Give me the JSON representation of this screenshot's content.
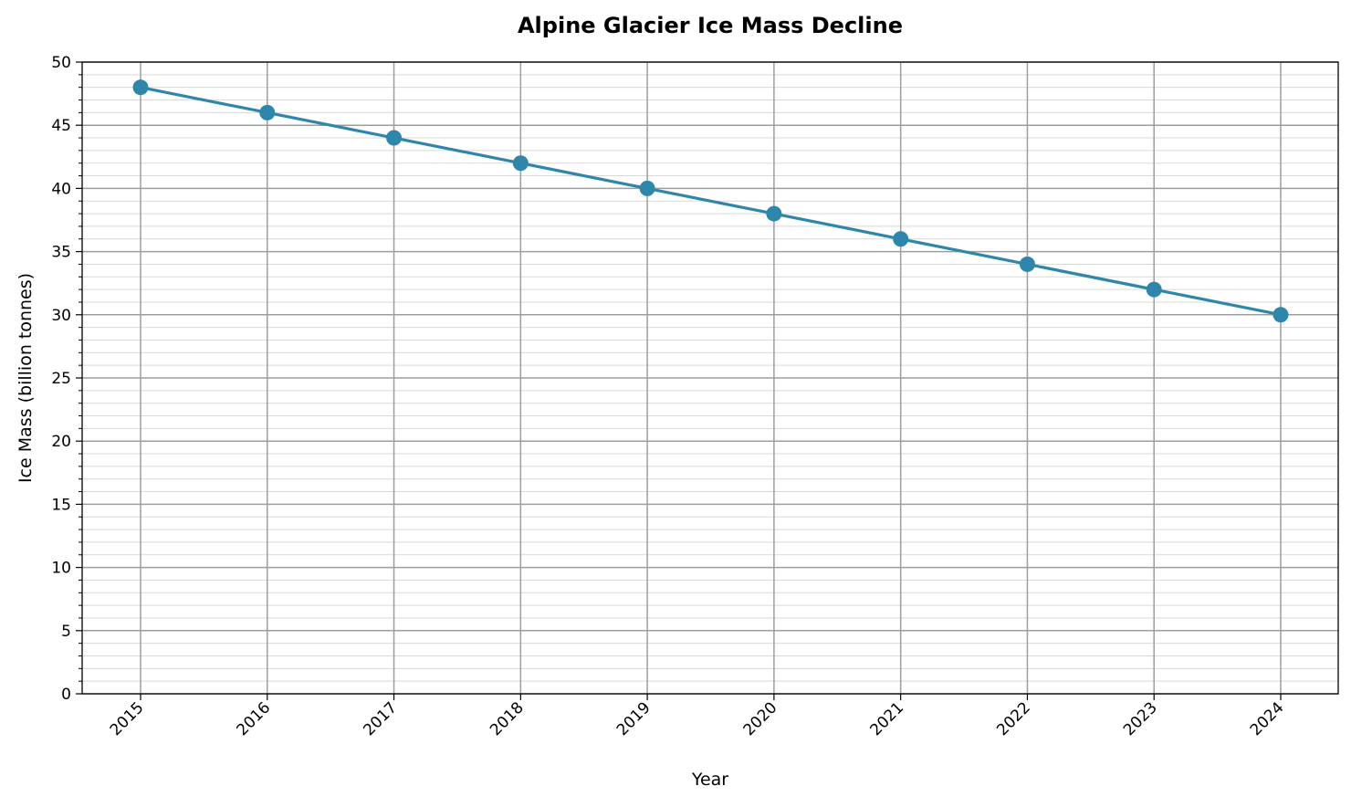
{
  "chart_data": {
    "type": "line",
    "title": "Alpine Glacier Ice Mass Decline",
    "xlabel": "Year",
    "ylabel": "Ice Mass (billion tonnes)",
    "categories": [
      "2015",
      "2016",
      "2017",
      "2018",
      "2019",
      "2020",
      "2021",
      "2022",
      "2023",
      "2024"
    ],
    "series": [
      {
        "name": "Ice Mass",
        "values": [
          48,
          46,
          44,
          42,
          40,
          38,
          36,
          34,
          32,
          30
        ],
        "color": "#2e86ab"
      }
    ],
    "ylim": [
      0,
      50
    ],
    "yticks": [
      "0",
      "5",
      "10",
      "15",
      "20",
      "25",
      "30",
      "35",
      "40",
      "45",
      "50"
    ],
    "grid": true,
    "minor_grid_step": 1,
    "legend": "none"
  }
}
